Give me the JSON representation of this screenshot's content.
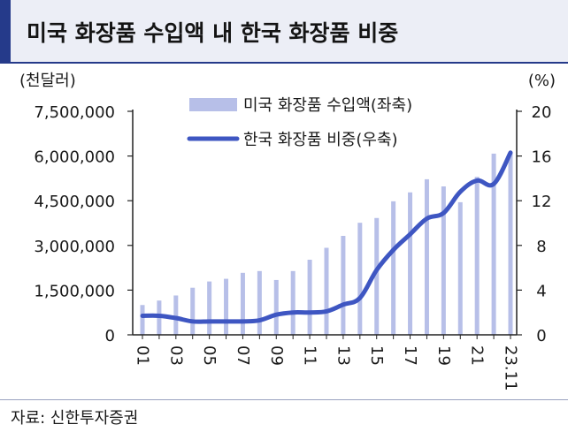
{
  "title": "미국 화장품 수입액 내 한국 화장품 비중",
  "source": "자료: 신한투자증권",
  "colors": {
    "bar": "#b7bfe8",
    "line": "#3e56c2",
    "header_bg": "#eceef6",
    "accent": "#253a8a"
  },
  "chart_data": {
    "type": "bar+line",
    "left_unit": "(천달러)",
    "right_unit": "(%)",
    "left_ylim": [
      0,
      7500000
    ],
    "left_ticks": [
      "0",
      "1,500,000",
      "3,000,000",
      "4,500,000",
      "6,000,000",
      "7,500,000"
    ],
    "right_ylim": [
      0,
      20
    ],
    "right_ticks": [
      "0",
      "4",
      "8",
      "12",
      "16",
      "20"
    ],
    "categories": [
      "01",
      "02",
      "03",
      "04",
      "05",
      "06",
      "07",
      "08",
      "09",
      "10",
      "11",
      "12",
      "13",
      "14",
      "15",
      "16",
      "17",
      "18",
      "19",
      "20",
      "21",
      "22",
      "23.11"
    ],
    "x_tick_labels": [
      "01",
      "03",
      "05",
      "07",
      "09",
      "11",
      "13",
      "15",
      "17",
      "19",
      "21",
      "23.11"
    ],
    "series": [
      {
        "name": "미국 화장품 수입액(좌축)",
        "type": "bar",
        "axis": "left",
        "values": [
          1000000,
          1150000,
          1320000,
          1580000,
          1790000,
          1880000,
          2080000,
          2140000,
          1840000,
          2140000,
          2520000,
          2920000,
          3320000,
          3760000,
          3920000,
          4480000,
          4780000,
          5220000,
          4980000,
          4450000,
          5300000,
          6080000,
          6120000
        ]
      },
      {
        "name": "한국 화장품 비중(우축)",
        "type": "line",
        "axis": "right",
        "values": [
          1.7,
          1.7,
          1.5,
          1.2,
          1.2,
          1.2,
          1.2,
          1.3,
          1.8,
          2.0,
          2.0,
          2.1,
          2.7,
          3.3,
          5.8,
          7.6,
          9.0,
          10.4,
          10.9,
          12.8,
          13.8,
          13.5,
          16.3
        ]
      }
    ]
  }
}
